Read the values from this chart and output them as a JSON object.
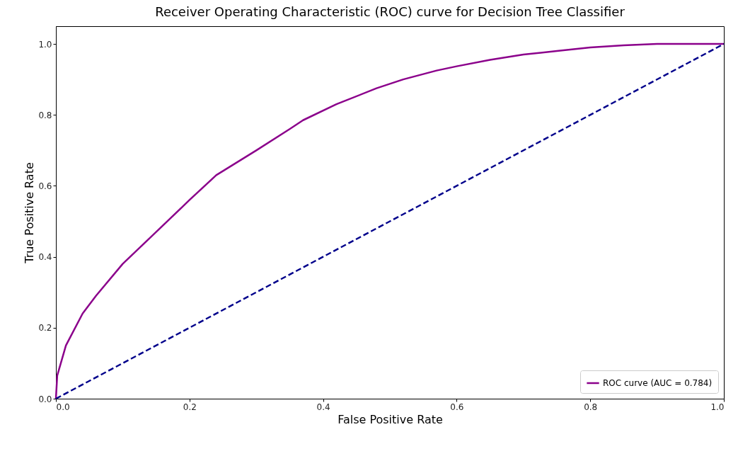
{
  "chart_data": {
    "type": "line",
    "title": "Receiver Operating Characteristic (ROC) curve for Decision Tree Classifier",
    "xlabel": "False Positive Rate",
    "ylabel": "True Positive Rate",
    "series": [
      {
        "name": "ROC curve (AUC = 0.784)",
        "color": "#8b008b",
        "line_style": "solid",
        "x": [
          0,
          0.002,
          0.015,
          0.04,
          0.06,
          0.1,
          0.15,
          0.2,
          0.24,
          0.3,
          0.35,
          0.37,
          0.42,
          0.48,
          0.52,
          0.57,
          0.6,
          0.65,
          0.7,
          0.75,
          0.8,
          0.85,
          0.9,
          1
        ],
        "values": [
          0,
          0.065,
          0.15,
          0.24,
          0.29,
          0.38,
          0.47,
          0.56,
          0.63,
          0.7,
          0.76,
          0.785,
          0.83,
          0.875,
          0.9,
          0.925,
          0.937,
          0.955,
          0.97,
          0.98,
          0.99,
          0.996,
          1,
          1
        ]
      },
      {
        "color": "#00008b",
        "line_style": "dashed",
        "x": [
          0,
          1
        ],
        "values": [
          0,
          1
        ]
      }
    ],
    "xlim": [
      0,
      1
    ],
    "ylim": [
      0,
      1.05
    ],
    "xticks": [
      {
        "value": 0,
        "label": "0.0"
      },
      {
        "value": 0.2,
        "label": "0.2"
      },
      {
        "value": 0.4,
        "label": "0.4"
      },
      {
        "value": 0.6,
        "label": "0.6"
      },
      {
        "value": 0.8,
        "label": "0.8"
      },
      {
        "value": 1,
        "label": "1.0"
      }
    ],
    "yticks": [
      {
        "value": 0,
        "label": "0.0"
      },
      {
        "value": 0.2,
        "label": "0.2"
      },
      {
        "value": 0.4,
        "label": "0.4"
      },
      {
        "value": 0.6,
        "label": "0.6"
      },
      {
        "value": 0.8,
        "label": "0.8"
      },
      {
        "value": 1,
        "label": "1.0"
      }
    ],
    "grid": false,
    "legend": "bottom right"
  }
}
